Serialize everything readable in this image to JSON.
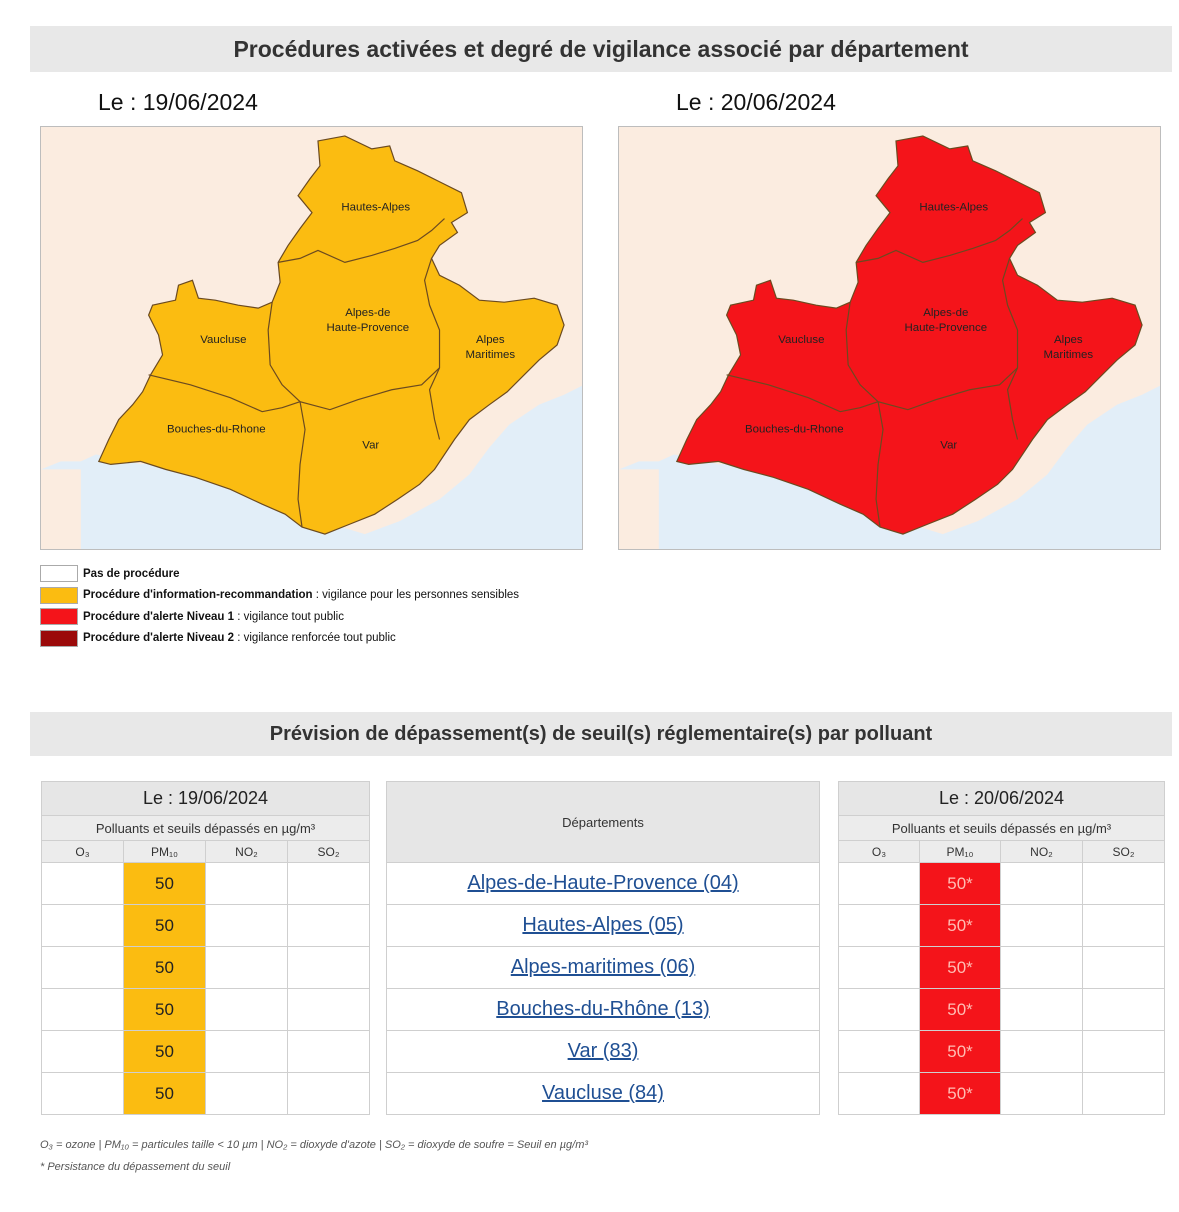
{
  "header1": "Procédures activées et degré de vigilance associé par département",
  "map1": {
    "date_label": "Le : 19/06/2024",
    "fill": "#fbbc11"
  },
  "map2": {
    "date_label": "Le : 20/06/2024",
    "fill": "#f4141a"
  },
  "departments_on_map": {
    "hautes_alpes": "Hautes-Alpes",
    "ahp_line1": "Alpes-de",
    "ahp_line2": "Haute-Provence",
    "vaucluse": "Vaucluse",
    "am_line1": "Alpes",
    "am_line2": "Maritimes",
    "bdr": "Bouches-du-Rhone",
    "var": "Var"
  },
  "legend": [
    {
      "color": "#ffffff",
      "bold": "Pas de procédure",
      "text": ""
    },
    {
      "color": "#fbbc11",
      "bold": "Procédure d'information-recommandation",
      "text": " : vigilance pour les personnes sensibles"
    },
    {
      "color": "#f4141a",
      "bold": "Procédure d'alerte Niveau 1",
      "text": " : vigilance tout public"
    },
    {
      "color": "#9b0a0a",
      "bold": "Procédure d'alerte Niveau 2",
      "text": " : vigilance renforcée tout public"
    }
  ],
  "header2": "Prévision de dépassement(s) de seuil(s) réglementaire(s) par polluant",
  "table_left": {
    "date": "Le : 19/06/2024",
    "subtitle": "Polluants et seuils dépassés en µg/m³",
    "pollutants": [
      "O₃",
      "PM₁₀",
      "NO₂",
      "SO₂"
    ],
    "values": [
      "50",
      "50",
      "50",
      "50",
      "50",
      "50"
    ]
  },
  "table_mid": {
    "header": "Départements",
    "departments": [
      "Alpes-de-Haute-Provence (04)",
      "Hautes-Alpes (05)",
      "Alpes-maritimes (06)",
      "Bouches-du-Rhône (13)",
      "Var (83)",
      "Vaucluse (84)"
    ]
  },
  "table_right": {
    "date": "Le : 20/06/2024",
    "subtitle": "Polluants et seuils dépassés en µg/m³",
    "pollutants": [
      "O₃",
      "PM₁₀",
      "NO₂",
      "SO₂"
    ],
    "values": [
      "50*",
      "50*",
      "50*",
      "50*",
      "50*",
      "50*"
    ]
  },
  "footnote1": "O₃ = ozone | PM₁₀ = particules taille < 10 µm | NO₂ = dioxyde d'azote | SO₂ = dioxyde de soufre = Seuil en µg/m³",
  "footnote2": "* Persistance du dépassement du seuil"
}
